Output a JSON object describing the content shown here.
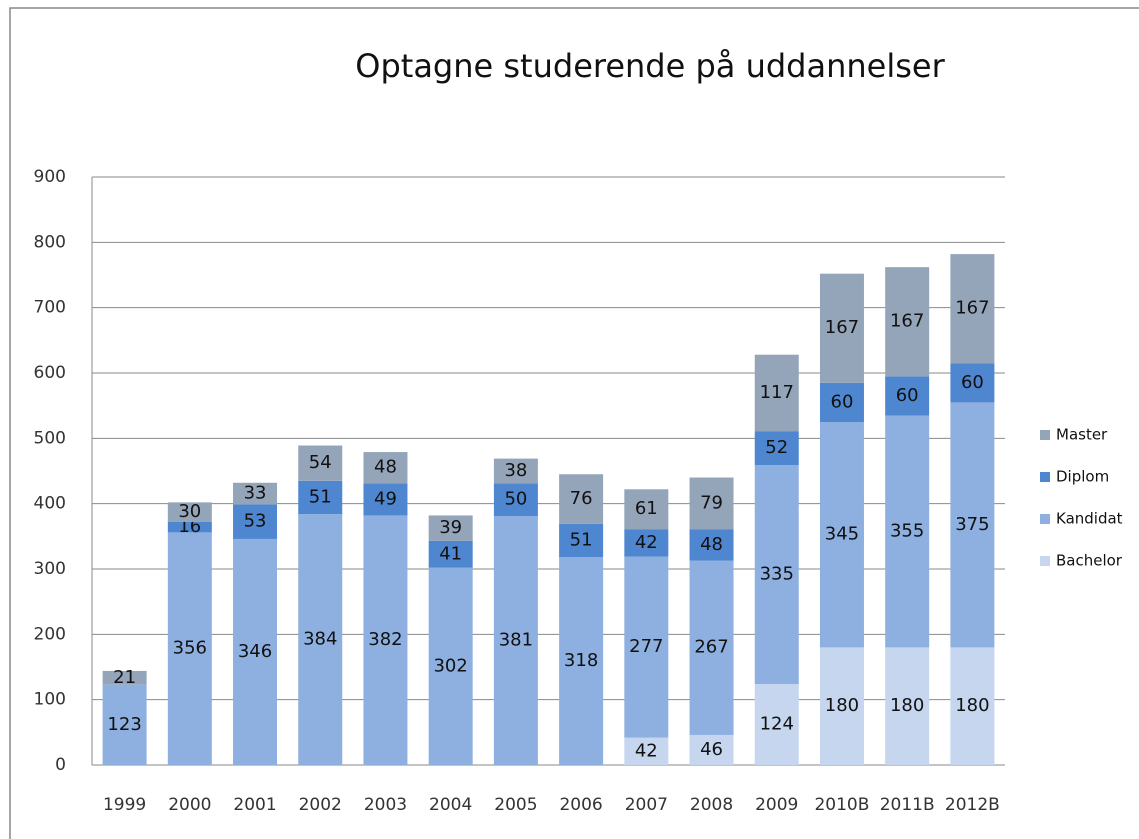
{
  "chart_data": {
    "type": "stacked_bar",
    "title": "Optagne studerende på uddannelser",
    "categories": [
      "1999",
      "2000",
      "2001",
      "2002",
      "2003",
      "2004",
      "2005",
      "2006",
      "2007",
      "2008",
      "2009",
      "2010B",
      "2011B",
      "2012B"
    ],
    "series": [
      {
        "name": "Bachelor",
        "color": "#c5d6ee",
        "values": [
          null,
          null,
          null,
          null,
          null,
          null,
          null,
          null,
          42,
          46,
          124,
          180,
          180,
          180
        ]
      },
      {
        "name": "Kandidat",
        "color": "#8db0e0",
        "values": [
          123,
          356,
          346,
          384,
          382,
          302,
          381,
          318,
          277,
          267,
          335,
          345,
          355,
          375
        ]
      },
      {
        "name": "Diplom",
        "color": "#4f86d0",
        "values": [
          null,
          16,
          53,
          51,
          49,
          41,
          50,
          51,
          42,
          48,
          52,
          60,
          60,
          60
        ]
      },
      {
        "name": "Master",
        "color": "#95a5b9",
        "values": [
          21,
          30,
          33,
          54,
          48,
          39,
          38,
          76,
          61,
          79,
          117,
          167,
          167,
          167
        ]
      }
    ],
    "ylim": [
      0,
      900
    ],
    "yticks": [
      0,
      100,
      200,
      300,
      400,
      500,
      600,
      700,
      800,
      900
    ],
    "grid": true,
    "legend": "right"
  }
}
